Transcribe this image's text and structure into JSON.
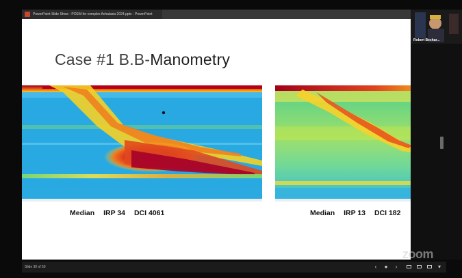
{
  "window": {
    "title": "PowerPoint Slide Show  -  POEM for complex Achalasia 2024.pptx  -  PowerPoint"
  },
  "slide": {
    "title_part1": "Case #1 B.B-",
    "title_part2": "Manometry",
    "left_caption": {
      "median": "Median",
      "irp": "IRP 34",
      "dci": "DCI 4061"
    },
    "right_caption": {
      "median": "Median",
      "irp": "IRP 13",
      "dci": "DCI 182"
    }
  },
  "video": {
    "participant_name": "Robert Bechar..."
  },
  "controls": {
    "slide_counter": "Slide 30 of 50"
  },
  "watermark": "zoom",
  "colors": {
    "plot_background": "#28a8e0",
    "plot_hot": "#b8001c",
    "plot_warm": "#f7d21a",
    "plot_mid": "#5ed48a"
  }
}
